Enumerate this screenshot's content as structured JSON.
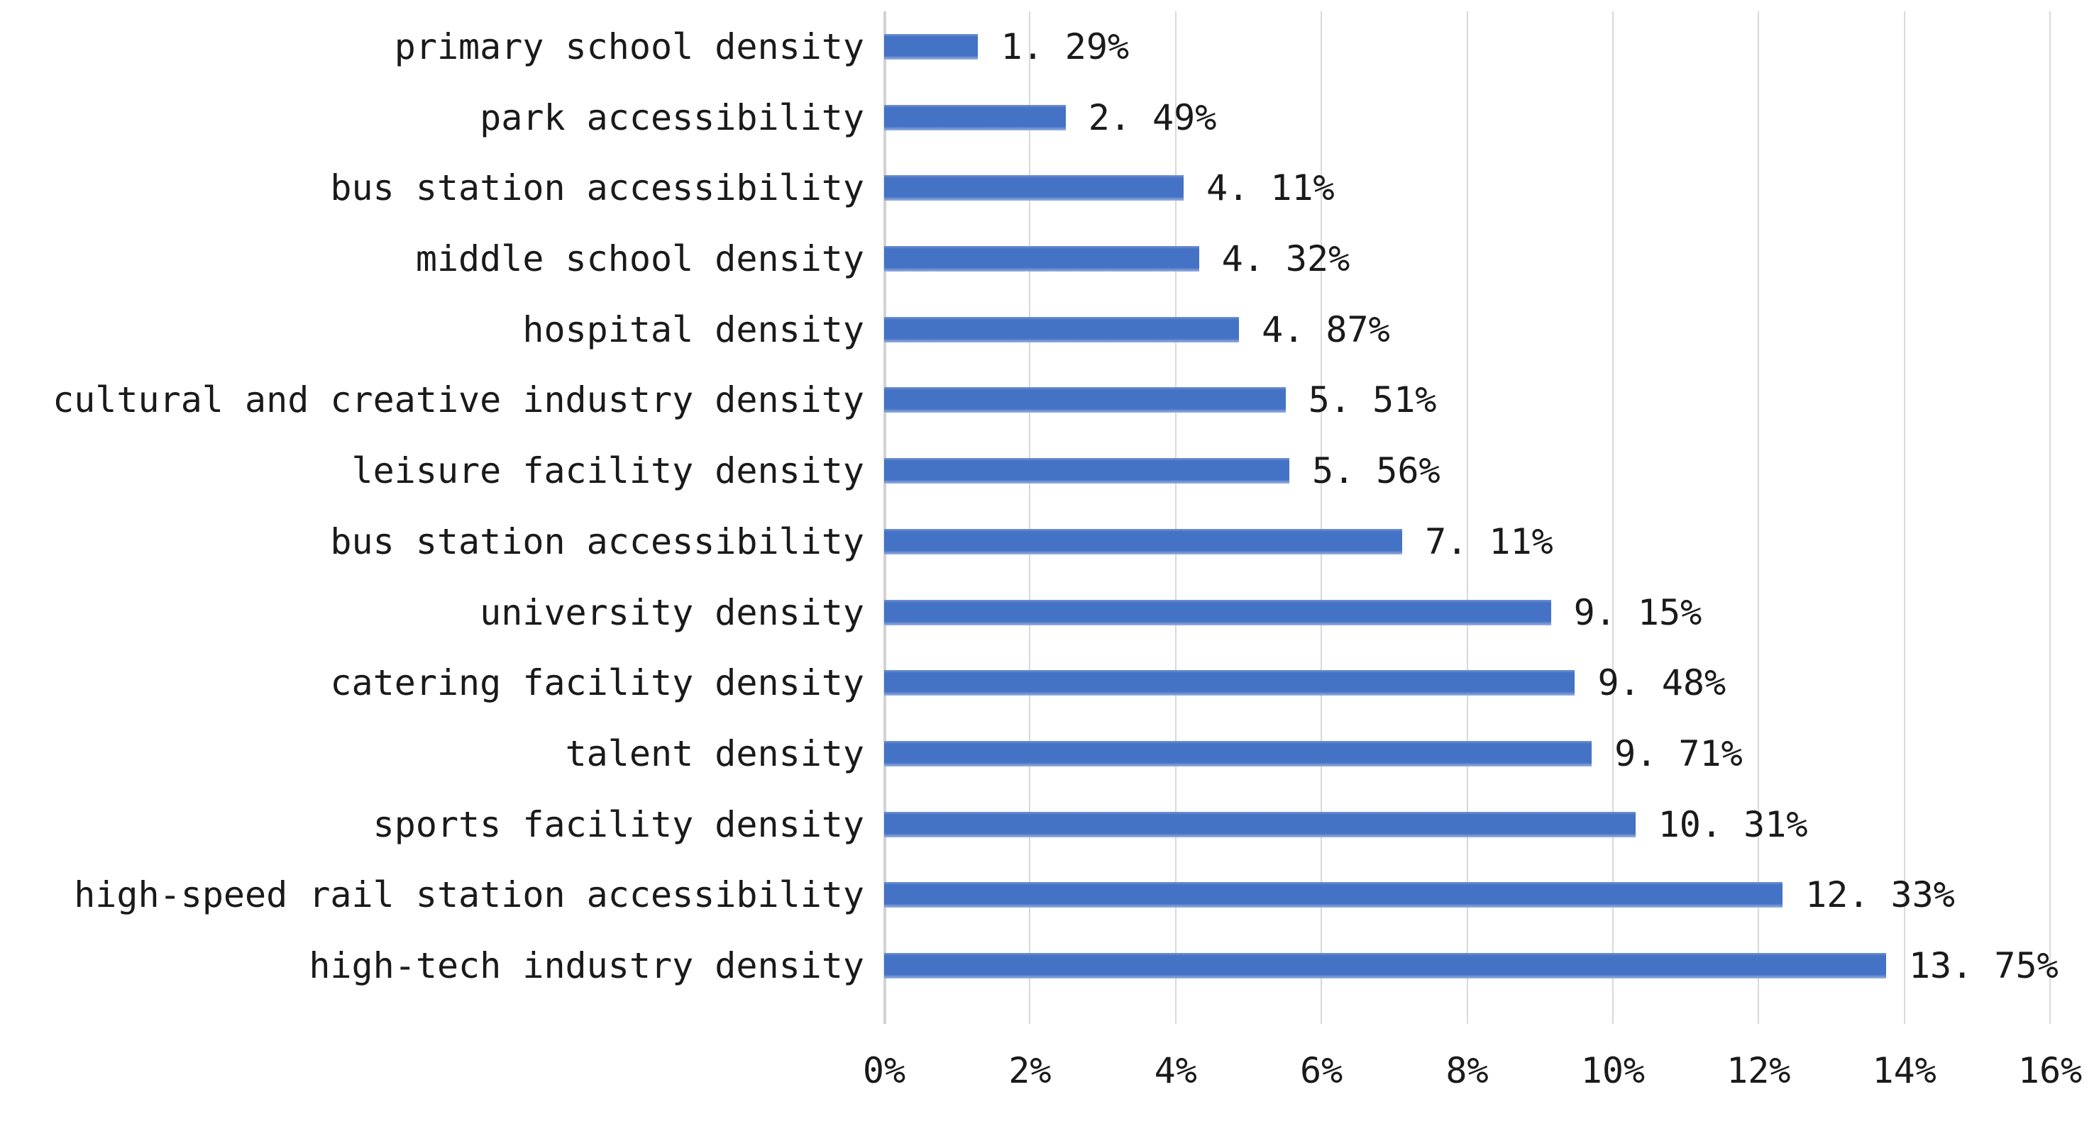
{
  "chart_data": {
    "type": "bar",
    "orientation": "horizontal",
    "title": "",
    "xlabel": "",
    "ylabel": "",
    "categories": [
      "primary school density",
      "park accessibility",
      "bus station accessibility",
      "middle school density",
      "hospital density",
      "cultural and creative industry density",
      "leisure facility density",
      "bus station accessibility",
      "university density",
      "catering facility density",
      "talent density",
      "sports facility density",
      "high-speed rail station accessibility",
      "high-tech industry density"
    ],
    "values": [
      1.29,
      2.49,
      4.11,
      4.32,
      4.87,
      5.51,
      5.56,
      7.11,
      9.15,
      9.48,
      9.71,
      10.31,
      12.33,
      13.75
    ],
    "value_labels": [
      "1. 29%",
      "2. 49%",
      "4. 11%",
      "4. 32%",
      "4. 87%",
      "5. 51%",
      "5. 56%",
      "7. 11%",
      "9. 15%",
      "9. 48%",
      "9. 71%",
      "10. 31%",
      "12. 33%",
      "13. 75%"
    ],
    "xlim": [
      0,
      16
    ],
    "x_ticks": [
      "0%",
      "2%",
      "4%",
      "6%",
      "8%",
      "10%",
      "12%",
      "14%",
      "16%"
    ],
    "x_tick_values": [
      0,
      2,
      4,
      6,
      8,
      10,
      12,
      14,
      16
    ],
    "grid": true,
    "legend": false,
    "colors": {
      "bar": "#4472C4",
      "bar_edge_light": "#9DB3E0",
      "gridline": "#D9D9D9",
      "text": "#1A1A1A",
      "background": "#FFFFFF"
    }
  }
}
